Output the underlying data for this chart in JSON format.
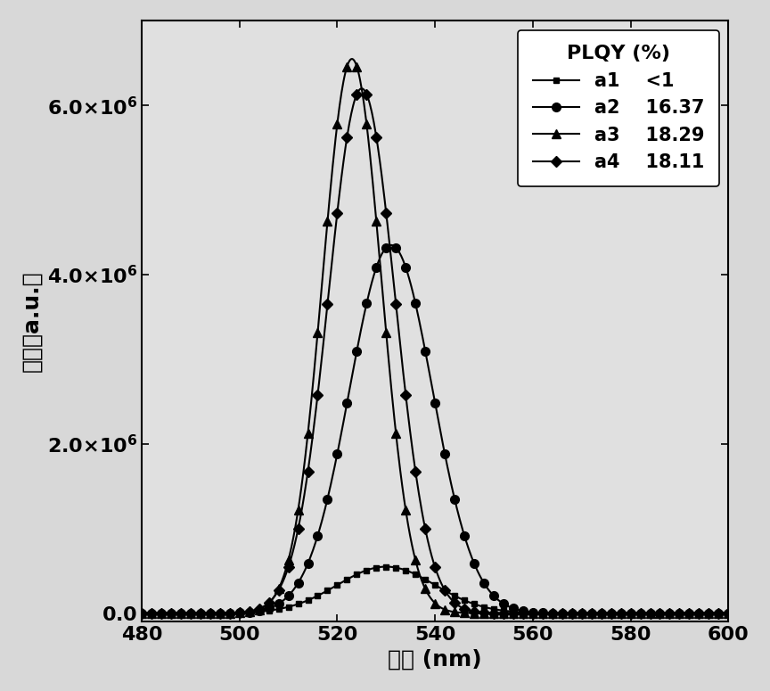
{
  "xlabel": "波长 (nm)",
  "ylabel": "强度（a.u.）",
  "xlim": [
    480,
    600
  ],
  "ylim": [
    -100000.0,
    7000000.0
  ],
  "yticks": [
    0.0,
    2000000.0,
    4000000.0,
    6000000.0
  ],
  "ytick_labels": [
    "0.0",
    "2.0x10⁶",
    "4.0x10⁶",
    "6.0x10⁶"
  ],
  "xticks": [
    480,
    500,
    520,
    540,
    560,
    580,
    600
  ],
  "series": [
    {
      "label": "a1",
      "plqy": "<1",
      "color": "#000000",
      "marker": "s",
      "markersize": 5,
      "linewidth": 1.5,
      "peak_wavelength": 530,
      "peak_intensity": 550000.0,
      "sigma": 10.0,
      "marker_step": 2,
      "zorder": 3
    },
    {
      "label": "a2",
      "plqy": "16.37",
      "color": "#000000",
      "marker": "o",
      "markersize": 7,
      "linewidth": 1.5,
      "peak_wavelength": 531,
      "peak_intensity": 4350000.0,
      "sigma": 8.5,
      "marker_step": 2,
      "zorder": 4
    },
    {
      "label": "a3",
      "plqy": "18.29",
      "color": "#000000",
      "marker": "^",
      "markersize": 7,
      "linewidth": 1.5,
      "peak_wavelength": 523,
      "peak_intensity": 6550000.0,
      "sigma": 6.0,
      "marker_step": 2,
      "zorder": 5
    },
    {
      "label": "a4",
      "plqy": "18.11",
      "color": "#000000",
      "marker": "D",
      "markersize": 6,
      "linewidth": 1.5,
      "peak_wavelength": 525,
      "peak_intensity": 6200000.0,
      "sigma": 6.8,
      "marker_step": 2,
      "zorder": 6
    }
  ],
  "legend_title": "PLQY (%)",
  "background_color": "#e8e8e8",
  "plot_bg_color": "#e8e8e8",
  "axis_color": "#000000",
  "fontsize_labels": 18,
  "fontsize_ticks": 16,
  "fontsize_legend": 15,
  "fontsize_legend_title": 16
}
